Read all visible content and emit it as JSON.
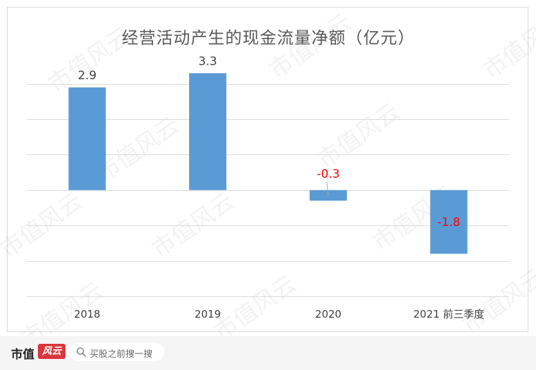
{
  "chart_data": {
    "type": "bar",
    "title": "经营活动产生的现金流量净额（亿元）",
    "categories": [
      "2018",
      "2019",
      "2020",
      "2021 前三季度"
    ],
    "values": [
      2.9,
      3.3,
      -0.3,
      -1.8
    ],
    "value_labels": [
      "2.9",
      "3.3",
      "-0.3",
      "-1.8"
    ],
    "ylim": [
      -3.0,
      3.5
    ],
    "grid": true,
    "bar_color": "#5b9bd5",
    "positive_label_color": "#404040",
    "negative_label_color": "#ff0000"
  },
  "watermark": "市值风云",
  "footer": {
    "brand": "市值",
    "brand_badge": "风云",
    "search_text": "买股之前搜一搜"
  }
}
